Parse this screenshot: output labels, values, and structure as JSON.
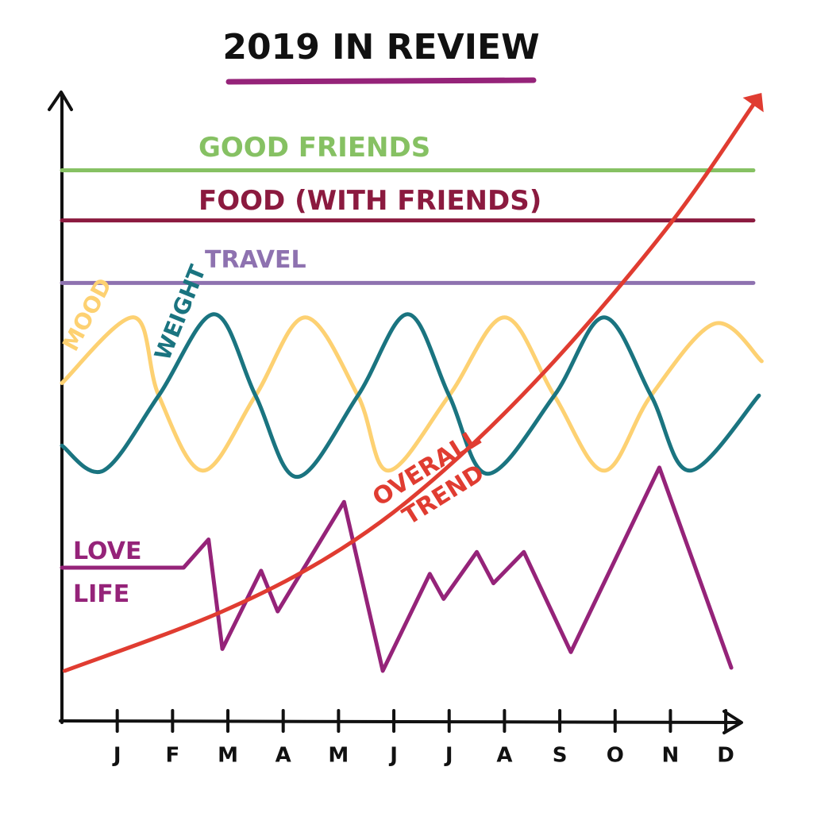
{
  "chart_data": {
    "type": "line",
    "title": "2019 IN REVIEW",
    "categories": [
      "J",
      "F",
      "M",
      "A",
      "M",
      "J",
      "J",
      "A",
      "S",
      "O",
      "N",
      "D"
    ],
    "xlim": [
      0,
      12.3
    ],
    "ylim": [
      0,
      100
    ],
    "series": [
      {
        "name": "GOOD FRIENDS",
        "color": "#86c163",
        "x": [
          0,
          12.5
        ],
        "values": [
          88,
          88
        ]
      },
      {
        "name": "FOOD (WITH FRIENDS)",
        "color": "#8b1a3f",
        "x": [
          0,
          12.5
        ],
        "values": [
          80,
          80
        ]
      },
      {
        "name": "TRAVEL",
        "color": "#8e72b0",
        "x": [
          0,
          12.5
        ],
        "values": [
          70,
          70
        ]
      },
      {
        "name": "MOOD",
        "color": "#fdd172",
        "x": [
          0,
          1.3,
          1.75,
          2.55,
          3.5,
          4.4,
          5.35,
          5.9,
          7.0,
          8.0,
          8.9,
          9.8,
          10.65,
          11.8,
          12.65
        ],
        "values": [
          54,
          64.5,
          52,
          40,
          52,
          64.5,
          52,
          40,
          52,
          64.5,
          52,
          40,
          52,
          63.5,
          57.5
        ]
      },
      {
        "name": "WEIGHT",
        "color": "#1a7480",
        "x": [
          0,
          0.75,
          1.75,
          2.75,
          3.5,
          4.25,
          5.35,
          6.25,
          7.0,
          7.7,
          8.9,
          9.8,
          10.65,
          11.35,
          12.6
        ],
        "values": [
          44,
          40,
          52,
          65,
          52,
          39,
          52,
          65,
          52,
          39.5,
          52,
          64.5,
          52,
          40,
          52
        ]
      },
      {
        "name": "LOVE LIFE",
        "color": "#952379",
        "x": [
          0,
          2.2,
          2.65,
          2.9,
          3.6,
          3.9,
          5.1,
          5.8,
          6.65,
          6.9,
          7.5,
          7.8,
          8.35,
          9.2,
          10.8,
          12.1
        ],
        "values": [
          24.5,
          24.5,
          29,
          11.5,
          24,
          17.5,
          35,
          8,
          23.5,
          19.5,
          27,
          22,
          27,
          11,
          40.5,
          8.5
        ]
      },
      {
        "name": "OVERALL TREND",
        "color": "#e03c31",
        "x": [
          0.05,
          2.9,
          5.05,
          6.9,
          8.9,
          11,
          12.5
        ],
        "values": [
          8,
          17.5,
          27.5,
          40,
          57.5,
          79.5,
          98.5
        ]
      }
    ]
  }
}
